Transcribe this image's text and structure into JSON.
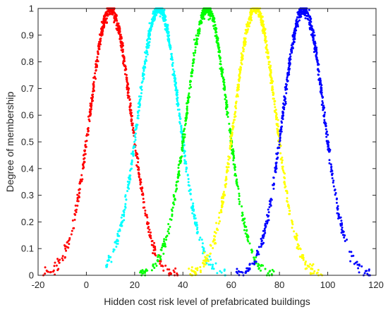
{
  "chart_data": {
    "type": "scatter",
    "title": "",
    "xlabel": "Hidden cost risk level of prefabricated buildings",
    "ylabel": "Degree of membership",
    "xlim": [
      -20,
      120
    ],
    "ylim": [
      0,
      1
    ],
    "xticks": [
      "-20",
      "0",
      "20",
      "40",
      "60",
      "80",
      "100",
      "120"
    ],
    "yticks": [
      "0",
      "0.1",
      "0.2",
      "0.3",
      "0.4",
      "0.5",
      "0.6",
      "0.7",
      "0.8",
      "0.9",
      "1"
    ],
    "grid": false,
    "legend": "none",
    "series": [
      {
        "color": "#ff0000",
        "mean": 10,
        "sd": 8.5,
        "x_range": [
          -18,
          38
        ]
      },
      {
        "color": "#00ffff",
        "mean": 30,
        "sd": 8.5,
        "x_range": [
          8,
          58
        ]
      },
      {
        "color": "#00ff00",
        "mean": 50,
        "sd": 8.5,
        "x_range": [
          22,
          78
        ]
      },
      {
        "color": "#ffff00",
        "mean": 70,
        "sd": 8.5,
        "x_range": [
          42,
          98
        ]
      },
      {
        "color": "#0000ff",
        "mean": 90,
        "sd": 8.5,
        "x_range": [
          62,
          118
        ]
      }
    ]
  }
}
